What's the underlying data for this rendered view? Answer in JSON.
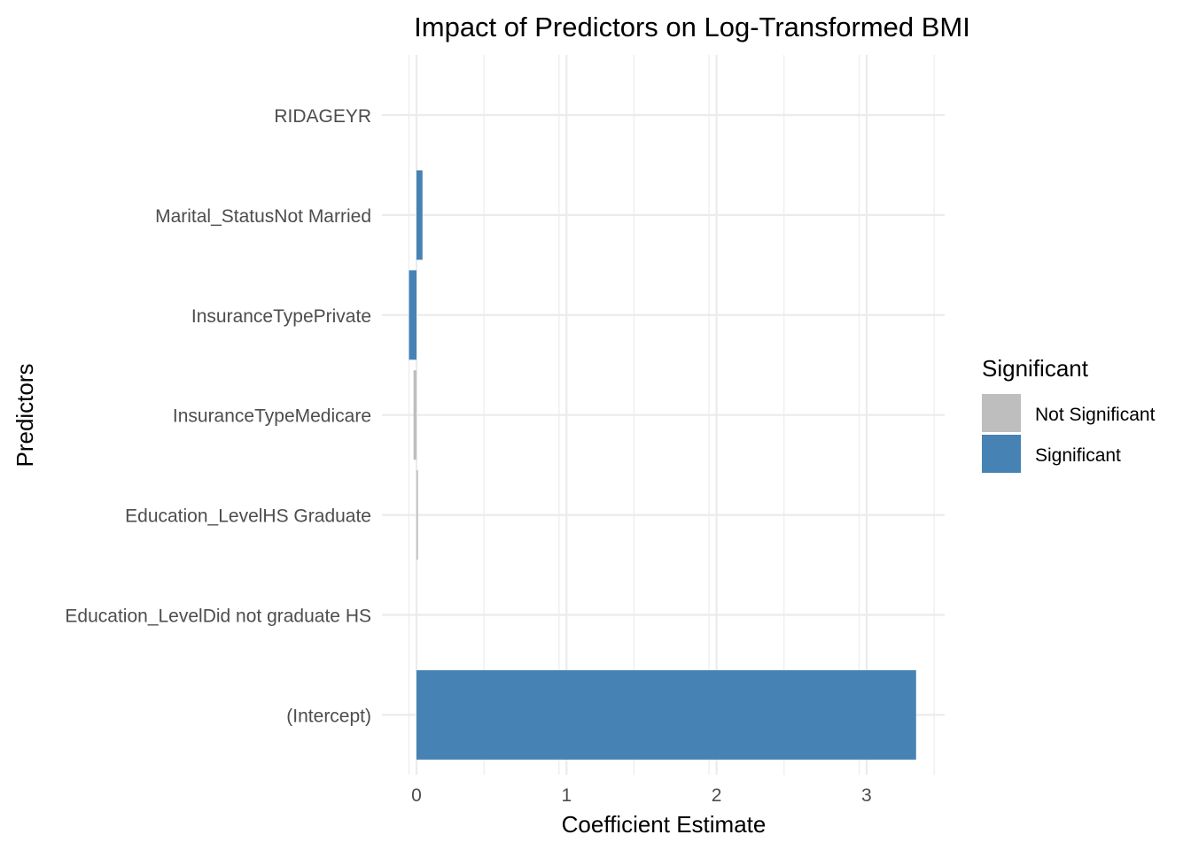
{
  "chart_data": {
    "type": "bar",
    "orientation": "horizontal",
    "title": "Impact of Predictors on Log-Transformed BMI",
    "xlabel": "Coefficient Estimate",
    "ylabel": "Predictors",
    "xlim": [
      -0.05,
      3.5
    ],
    "xticks": [
      0,
      1,
      2,
      3
    ],
    "xtick_labels": [
      "0",
      "1",
      "2",
      "3"
    ],
    "grid": true,
    "categories": [
      "(Intercept)",
      "Education_LevelDid not graduate HS",
      "Education_LevelHS Graduate",
      "InsuranceTypeMedicare",
      "InsuranceTypePrivate",
      "Marital_StatusNot Married",
      "RIDAGEYR"
    ],
    "values": [
      3.33,
      0.0,
      0.01,
      -0.02,
      -0.05,
      0.04,
      0.0
    ],
    "significant": [
      "Significant",
      "Not Significant",
      "Not Significant",
      "Not Significant",
      "Significant",
      "Significant",
      "Significant"
    ],
    "legend": {
      "title": "Significant",
      "position": "right",
      "entries": [
        {
          "label": "Not Significant",
          "color": "#bebebe"
        },
        {
          "label": "Significant",
          "color": "#4682b4"
        }
      ]
    },
    "colors": {
      "Not Significant": "#bebebe",
      "Significant": "#4682b4"
    }
  }
}
